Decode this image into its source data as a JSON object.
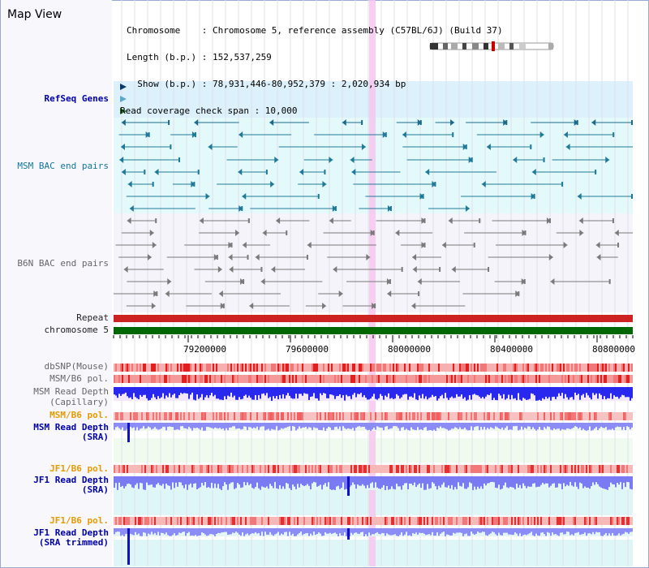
{
  "window": {
    "title": "Map View"
  },
  "info": {
    "chromosome_line": "Chromosome    : Chromosome 5, reference assembly (C57BL/6J) (Build 37)",
    "length_line": "Length (b.p.) : 152,537,259",
    "show_line": "  Show (b.p.) : 78,931,446-80,952,379 : 2,020,934 bp",
    "coverage_line": "Read coverage check span : 10,000"
  },
  "tracks": {
    "refseq": "RefSeq Genes",
    "msm_bac": "MSM BAC end pairs",
    "b6n_bac": "B6N BAC end pairs",
    "repeat": "Repeat",
    "chromosome": "chromosome 5",
    "dbsnp": "dbSNP(Mouse)",
    "msm_b6_pol_1": "MSM/B6 pol.",
    "msm_depth_cap_1": "MSM Read Depth",
    "msm_depth_cap_2": "(Capillary)",
    "msm_b6_pol_2": "MSM/B6 pol.",
    "msm_depth_sra_1": "MSM Read Depth",
    "msm_depth_sra_2": "(SRA)",
    "jf1_pol_1": "JF1/B6 pol.",
    "jf1_depth_sra_1": "JF1 Read Depth",
    "jf1_depth_sra_2": "(SRA)",
    "jf1_pol_2": "JF1/B6 pol.",
    "jf1_depth_trim_1": "JF1 Read Depth",
    "jf1_depth_trim_2": "(SRA trimmed)"
  },
  "axis": {
    "ticks": [
      "79200000",
      "79600000",
      "80000000",
      "80400000",
      "80800000"
    ]
  },
  "colors": {
    "refseq_bg": "#dcf1fb",
    "msm_bg": "#e6fafa",
    "b6n_bg": "#f3f3fa",
    "highlight": "#f7c7ee",
    "chromosome": "#006600",
    "depth_blue": "#2222ee",
    "depth_light": "#8c8cf6"
  }
}
